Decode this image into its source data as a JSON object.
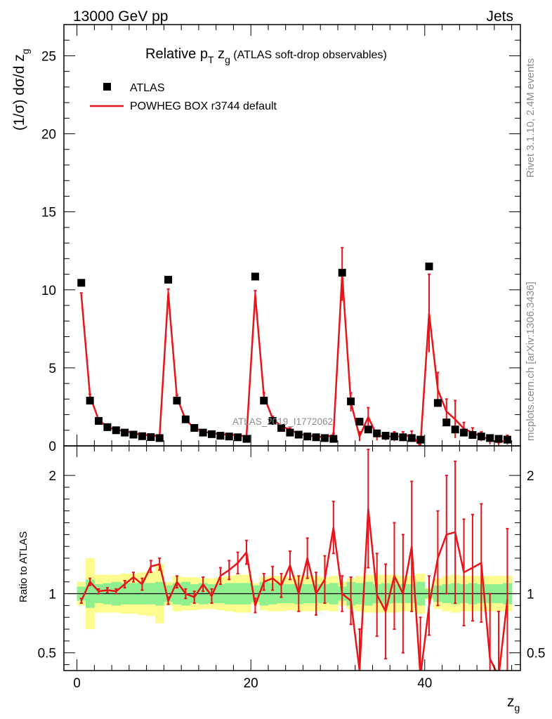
{
  "header": {
    "energy_label": "13000 GeV pp",
    "category": "Jets"
  },
  "side_text": {
    "rivet": "Rivet 3.1.10,  2.4M events",
    "mcplots": "mcplots.cern.ch [arXiv:1306.3436]"
  },
  "watermark": "ATLAS_2019_I1772062",
  "colors": {
    "data_marker": "#000000",
    "mc_line": "#e8141a",
    "band_inner": "#8ef08e",
    "band_outer": "#fbfb8e"
  },
  "chart_data": [
    {
      "id": "main",
      "type": "line",
      "title_main": "Relative p",
      "title_sub1": "T",
      "title_mid": " z",
      "title_sub2": "g",
      "title_rest": " (ATLAS soft-drop observables)",
      "ylabel": "(1/σ) dσ/d z",
      "ylabel_sub": "g",
      "xlim": [
        -1.5,
        51
      ],
      "ylim": [
        0,
        27
      ],
      "yticks": [
        0,
        5,
        10,
        15,
        20,
        25
      ],
      "yticklabels": [
        "0",
        "5",
        "10",
        "15",
        "20",
        "25"
      ],
      "legend": {
        "position": "top-left",
        "entries": [
          "ATLAS",
          "POWHEG BOX r3744 default"
        ]
      },
      "series": [
        {
          "name": "ATLAS",
          "x": [
            0.5,
            1.5,
            2.5,
            3.5,
            4.5,
            5.5,
            6.5,
            7.5,
            8.5,
            9.5,
            10.5,
            11.5,
            12.5,
            13.5,
            14.5,
            15.5,
            16.5,
            17.5,
            18.5,
            19.5,
            20.5,
            21.5,
            22.5,
            23.5,
            24.5,
            25.5,
            26.5,
            27.5,
            28.5,
            29.5,
            30.5,
            31.5,
            32.5,
            33.5,
            34.5,
            35.5,
            36.5,
            37.5,
            38.5,
            39.5,
            40.5,
            41.5,
            42.5,
            43.5,
            44.5,
            45.5,
            46.5,
            47.5,
            48.5,
            49.5
          ],
          "y": [
            10.45,
            2.9,
            1.6,
            1.2,
            1.0,
            0.85,
            0.72,
            0.62,
            0.56,
            0.5,
            10.65,
            2.9,
            1.7,
            1.15,
            0.85,
            0.75,
            0.65,
            0.6,
            0.55,
            0.45,
            10.85,
            2.9,
            1.6,
            1.15,
            0.85,
            0.72,
            0.6,
            0.55,
            0.5,
            0.45,
            11.1,
            2.85,
            1.55,
            1.05,
            0.8,
            0.65,
            0.6,
            0.55,
            0.5,
            0.4,
            11.5,
            2.75,
            1.5,
            1.05,
            0.85,
            0.7,
            0.6,
            0.5,
            0.45,
            0.4
          ]
        },
        {
          "name": "POWHEG BOX r3744 default",
          "x": [
            0.5,
            1.5,
            2.5,
            3.5,
            4.5,
            5.5,
            6.5,
            7.5,
            8.5,
            9.5,
            10.5,
            11.5,
            12.5,
            13.5,
            14.5,
            15.5,
            16.5,
            17.5,
            18.5,
            19.5,
            20.5,
            21.5,
            22.5,
            23.5,
            24.5,
            25.5,
            26.5,
            27.5,
            28.5,
            29.5,
            30.5,
            31.5,
            32.5,
            33.5,
            34.5,
            35.5,
            36.5,
            37.5,
            38.5,
            39.5,
            40.5,
            41.5,
            42.5,
            43.5,
            44.5,
            45.5,
            46.5,
            47.5,
            48.5,
            49.5
          ],
          "y": [
            9.7,
            3.2,
            1.65,
            1.22,
            1.02,
            0.95,
            0.82,
            0.7,
            0.7,
            0.6,
            9.8,
            3.1,
            1.67,
            1.15,
            0.93,
            0.8,
            0.75,
            0.72,
            0.68,
            0.6,
            9.7,
            3.2,
            1.75,
            1.25,
            1.05,
            0.75,
            0.68,
            0.6,
            0.56,
            0.7,
            11.0,
            2.8,
            0.6,
            1.85,
            0.65,
            0.6,
            0.6,
            0.6,
            0.7,
            0.0,
            8.5,
            3.6,
            2.2,
            1.7,
            1.1,
            0.85,
            0.6,
            0.4,
            0.2,
            0.38
          ],
          "yerr": [
            0.1,
            0.1,
            0.05,
            0.05,
            0.05,
            0.05,
            0.05,
            0.05,
            0.05,
            0.05,
            0.25,
            0.15,
            0.1,
            0.1,
            0.05,
            0.05,
            0.05,
            0.05,
            0.05,
            0.05,
            0.25,
            0.2,
            0.15,
            0.1,
            0.1,
            0.1,
            0.1,
            0.1,
            0.1,
            0.1,
            1.7,
            0.6,
            0.3,
            0.6,
            0.3,
            0.25,
            0.3,
            0.3,
            0.25,
            0.3,
            2.5,
            1.1,
            0.8,
            1.2,
            0.4,
            0.3,
            0.3,
            0.3,
            0.25,
            0.3
          ]
        }
      ]
    },
    {
      "id": "ratio",
      "type": "line",
      "ylabel": "Ratio to ATLAS",
      "xlabel": "z",
      "xlabel_sub": "g",
      "xlim": [
        -1.5,
        51
      ],
      "ylim": [
        0.35,
        2.25
      ],
      "xticks": [
        0,
        20,
        40
      ],
      "xticklabels": [
        "0",
        "20",
        "40"
      ],
      "yticks": [
        0.5,
        1,
        2
      ],
      "yticklabels": [
        "0.5",
        "1",
        "2"
      ],
      "band_inner_halfwidth": [
        0.06,
        0.12,
        0.08,
        0.09,
        0.1,
        0.09,
        0.09,
        0.09,
        0.09,
        0.1,
        0.07,
        0.09,
        0.1,
        0.08,
        0.09,
        0.08,
        0.08,
        0.09,
        0.09,
        0.09,
        0.07,
        0.1,
        0.09,
        0.08,
        0.08,
        0.09,
        0.08,
        0.08,
        0.08,
        0.09,
        0.06,
        0.1,
        0.09,
        0.1,
        0.08,
        0.09,
        0.08,
        0.08,
        0.08,
        0.1,
        0.04,
        0.07,
        0.08,
        0.09,
        0.08,
        0.09,
        0.08,
        0.08,
        0.08,
        0.09
      ],
      "band_outer_halfwidth": [
        0.1,
        0.3,
        0.16,
        0.16,
        0.16,
        0.17,
        0.17,
        0.18,
        0.19,
        0.25,
        0.1,
        0.15,
        0.14,
        0.14,
        0.13,
        0.13,
        0.14,
        0.15,
        0.16,
        0.16,
        0.09,
        0.14,
        0.15,
        0.15,
        0.14,
        0.15,
        0.15,
        0.15,
        0.14,
        0.15,
        0.1,
        0.13,
        0.15,
        0.16,
        0.16,
        0.16,
        0.16,
        0.15,
        0.15,
        0.17,
        0.05,
        0.13,
        0.15,
        0.16,
        0.15,
        0.15,
        0.15,
        0.15,
        0.15,
        0.15
      ],
      "series": [
        {
          "name": "POWHEG BOX r3744 default / ATLAS",
          "x": [
            0.5,
            1.5,
            2.5,
            3.5,
            4.5,
            5.5,
            6.5,
            7.5,
            8.5,
            9.5,
            10.5,
            11.5,
            12.5,
            13.5,
            14.5,
            15.5,
            16.5,
            17.5,
            18.5,
            19.5,
            20.5,
            21.5,
            22.5,
            23.5,
            24.5,
            25.5,
            26.5,
            27.5,
            28.5,
            29.5,
            30.5,
            31.5,
            32.5,
            33.5,
            34.5,
            35.5,
            36.5,
            37.5,
            38.5,
            39.5,
            40.5,
            41.5,
            42.5,
            43.5,
            44.5,
            45.5,
            46.5,
            47.5,
            48.5,
            49.5
          ],
          "y": [
            0.94,
            1.1,
            1.02,
            1.03,
            1.02,
            1.08,
            1.14,
            1.08,
            1.23,
            1.25,
            0.94,
            1.1,
            1.0,
            0.97,
            1.08,
            0.98,
            1.15,
            1.2,
            1.26,
            1.35,
            0.9,
            1.1,
            1.13,
            1.07,
            1.24,
            1.0,
            1.3,
            1.0,
            1.12,
            1.56,
            1.0,
            0.94,
            0.35,
            1.72,
            0.99,
            0.85,
            1.15,
            1.0,
            1.4,
            0.3,
            0.9,
            1.3,
            1.5,
            1.52,
            1.18,
            1.22,
            1.26,
            0.45,
            0.3,
            0.95
          ],
          "yerr": [
            0.02,
            0.03,
            0.02,
            0.02,
            0.02,
            0.03,
            0.04,
            0.05,
            0.05,
            0.05,
            0.03,
            0.05,
            0.04,
            0.05,
            0.06,
            0.06,
            0.07,
            0.08,
            0.09,
            0.1,
            0.06,
            0.07,
            0.1,
            0.1,
            0.12,
            0.15,
            0.17,
            0.18,
            0.2,
            0.22,
            0.15,
            0.2,
            0.35,
            0.5,
            0.35,
            0.4,
            0.45,
            0.5,
            0.55,
            0.5,
            0.25,
            0.4,
            0.5,
            0.6,
            0.45,
            0.45,
            0.5,
            0.55,
            0.55,
            0.6
          ]
        }
      ]
    }
  ]
}
